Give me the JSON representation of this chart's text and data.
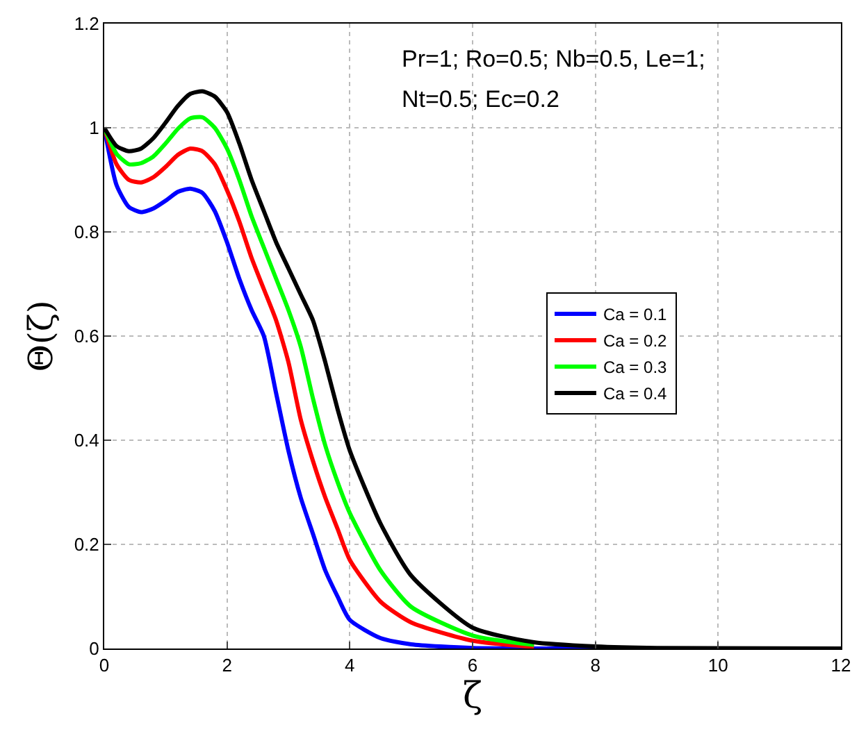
{
  "chart_data": {
    "type": "line",
    "xlabel": "ζ",
    "ylabel": "Θ(ζ)",
    "xlim": [
      0,
      12
    ],
    "ylim": [
      0,
      1.2
    ],
    "xticks": [
      0,
      2,
      4,
      6,
      8,
      10,
      12
    ],
    "yticks": [
      0,
      0.2,
      0.4,
      0.6,
      0.8,
      1,
      1.2
    ],
    "grid": true,
    "legend": "right",
    "line_style": "solid",
    "marker": "none",
    "annotations": [
      "Pr=1; Ro=0.5; Nb=0.5, Le=1;",
      "Nt=0.5; Ec=0.2"
    ],
    "series": [
      {
        "name": "Ca = 0.1",
        "color": "#0000ff",
        "x": [
          0,
          0.2,
          0.4,
          0.6,
          0.8,
          1,
          1.2,
          1.4,
          1.6,
          1.8,
          2,
          2.2,
          2.4,
          2.6,
          2.8,
          3,
          3.2,
          3.4,
          3.6,
          3.8,
          4,
          4.5,
          5,
          6,
          8,
          12
        ],
        "values": [
          1,
          0.89,
          0.848,
          0.838,
          0.845,
          0.86,
          0.877,
          0.883,
          0.875,
          0.84,
          0.78,
          0.71,
          0.65,
          0.6,
          0.49,
          0.38,
          0.29,
          0.22,
          0.15,
          0.1,
          0.055,
          0.02,
          0.008,
          0.001,
          0,
          0
        ]
      },
      {
        "name": "Ca = 0.2",
        "color": "#ff0000",
        "x": [
          0,
          0.2,
          0.4,
          0.6,
          0.8,
          1,
          1.2,
          1.4,
          1.6,
          1.8,
          2,
          2.2,
          2.4,
          2.6,
          2.8,
          3,
          3.2,
          3.4,
          3.6,
          3.8,
          4,
          4.5,
          5,
          6,
          7
        ],
        "values": [
          1,
          0.93,
          0.9,
          0.895,
          0.905,
          0.925,
          0.948,
          0.96,
          0.955,
          0.93,
          0.88,
          0.82,
          0.75,
          0.69,
          0.63,
          0.55,
          0.44,
          0.36,
          0.29,
          0.23,
          0.17,
          0.09,
          0.05,
          0.015,
          0.003
        ]
      },
      {
        "name": "Ca = 0.3",
        "color": "#00ff00",
        "x": [
          0,
          0.2,
          0.4,
          0.6,
          0.8,
          1,
          1.2,
          1.4,
          1.6,
          1.8,
          2,
          2.2,
          2.4,
          2.6,
          2.8,
          3,
          3.2,
          3.4,
          3.6,
          3.8,
          4,
          4.5,
          5,
          6,
          7
        ],
        "values": [
          1,
          0.95,
          0.93,
          0.932,
          0.945,
          0.97,
          0.998,
          1.018,
          1.02,
          1.0,
          0.96,
          0.9,
          0.83,
          0.77,
          0.71,
          0.65,
          0.58,
          0.48,
          0.39,
          0.32,
          0.26,
          0.15,
          0.08,
          0.025,
          0.007
        ]
      },
      {
        "name": "Ca = 0.4",
        "color": "#000000",
        "x": [
          0,
          0.2,
          0.4,
          0.6,
          0.8,
          1,
          1.2,
          1.4,
          1.6,
          1.8,
          2,
          2.2,
          2.4,
          2.6,
          2.8,
          3,
          3.2,
          3.4,
          3.6,
          3.8,
          4,
          4.5,
          5,
          6,
          7,
          8,
          9,
          12
        ],
        "values": [
          1,
          0.965,
          0.955,
          0.96,
          0.98,
          1.01,
          1.042,
          1.065,
          1.07,
          1.06,
          1.03,
          0.97,
          0.9,
          0.84,
          0.78,
          0.73,
          0.68,
          0.63,
          0.55,
          0.46,
          0.38,
          0.24,
          0.14,
          0.04,
          0.012,
          0.004,
          0.001,
          0
        ]
      }
    ]
  }
}
